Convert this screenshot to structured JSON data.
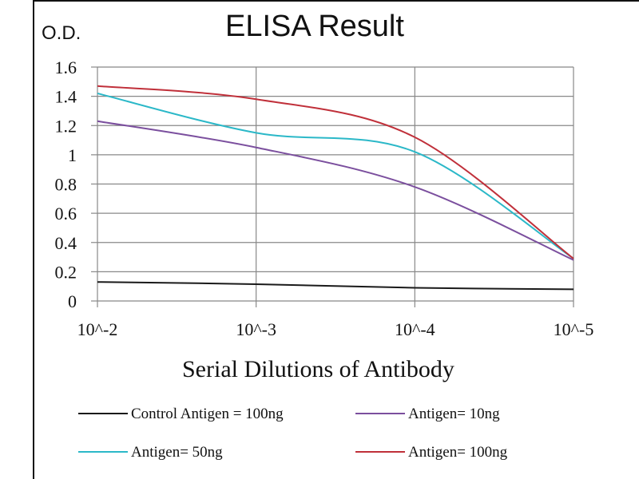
{
  "chart_data": {
    "type": "line",
    "title": "ELISA Result",
    "ylabel": "O.D.",
    "xlabel": "Serial Dilutions of Antibody",
    "categories": [
      "10^-2",
      "10^-3",
      "10^-4",
      "10^-5"
    ],
    "ylim": [
      0,
      1.6
    ],
    "yticks": [
      "0",
      "0.2",
      "0.4",
      "0.6",
      "0.8",
      "1",
      "1.2",
      "1.4",
      "1.6"
    ],
    "grid": true,
    "legend_position": "bottom",
    "series": [
      {
        "name": "Control Antigen = 100ng",
        "color": "#1a1a1a",
        "values": [
          0.13,
          0.115,
          0.09,
          0.08
        ]
      },
      {
        "name": "Antigen= 10ng",
        "color": "#7b4f9e",
        "values": [
          1.23,
          1.05,
          0.78,
          0.28
        ]
      },
      {
        "name": "Antigen= 50ng",
        "color": "#2bb8c8",
        "values": [
          1.42,
          1.15,
          1.02,
          0.29
        ]
      },
      {
        "name": "Antigen= 100ng",
        "color": "#c0303a",
        "values": [
          1.47,
          1.38,
          1.12,
          0.29
        ]
      }
    ]
  }
}
